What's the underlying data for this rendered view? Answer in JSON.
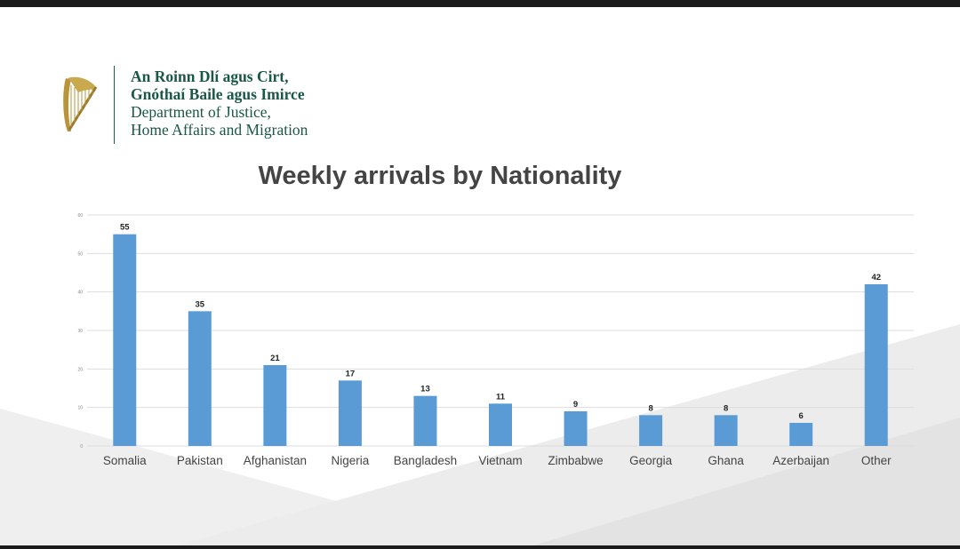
{
  "header": {
    "logo": {
      "line1": "An Roinn Dlí agus Cirt,",
      "line2": "Gnóthaí Baile agus Imirce",
      "line3": "Department of Justice,",
      "line4": "Home Affairs and Migration",
      "emblem": "harp-icon"
    }
  },
  "colors": {
    "bar": "#5b9bd5",
    "title": "#444444",
    "logo_text": "#1b5747",
    "gold": "#b8953c"
  },
  "chart_data": {
    "type": "bar",
    "title": "Weekly arrivals by Nationality",
    "xlabel": "",
    "ylabel": "",
    "categories": [
      "Somalia",
      "Pakistan",
      "Afghanistan",
      "Nigeria",
      "Bangladesh",
      "Vietnam",
      "Zimbabwe",
      "Georgia",
      "Ghana",
      "Azerbaijan",
      "Other"
    ],
    "values": [
      55,
      35,
      21,
      17,
      13,
      11,
      9,
      8,
      8,
      6,
      42
    ],
    "ylim": [
      0,
      60
    ],
    "yticks": [
      0,
      10,
      20,
      30,
      40,
      50,
      60
    ],
    "grid": true,
    "legend": "none",
    "data_labels": true
  }
}
